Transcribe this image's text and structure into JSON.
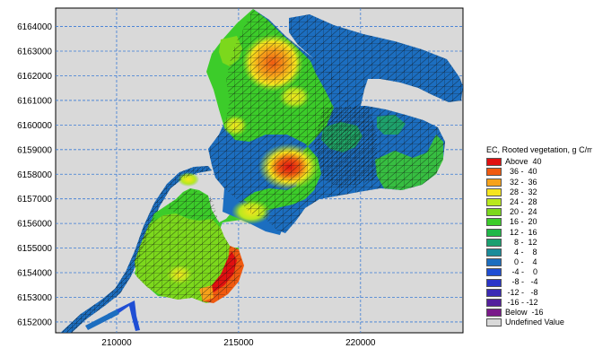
{
  "map": {
    "type": "mesh-contour-map",
    "x_ticks": [
      210000,
      215000,
      220000
    ],
    "y_ticks": [
      6164000,
      6163000,
      6162000,
      6161000,
      6160000,
      6159000,
      6158000,
      6157000,
      6156000,
      6155000,
      6154000,
      6153000,
      6152000
    ],
    "x_range": [
      207500,
      224200
    ],
    "y_range": [
      6151560,
      6164750
    ],
    "grid": true,
    "background_color": "#d9d9d9",
    "mesh_line_color": "#111111"
  },
  "legend": {
    "title": "EC, Rooted vegetation, g C/m",
    "placement": "right",
    "items": [
      {
        "label": "Above  40",
        "color": "#e01010"
      },
      {
        "label": "  36 -  40",
        "color": "#f05a10"
      },
      {
        "label": "  32 -  36",
        "color": "#f7a21a"
      },
      {
        "label": "  28 -  32",
        "color": "#f5e51e"
      },
      {
        "label": "  24 -  28",
        "color": "#b9e81e"
      },
      {
        "label": "  20 -  24",
        "color": "#7cd81c"
      },
      {
        "label": "  16 -  20",
        "color": "#3ccc2a"
      },
      {
        "label": "  12 -  16",
        "color": "#20b848"
      },
      {
        "label": "    8 -  12",
        "color": "#1aa070"
      },
      {
        "label": "    4 -    8",
        "color": "#1a8c9a"
      },
      {
        "label": "    0 -    4",
        "color": "#1c6ec0"
      },
      {
        "label": "   -4 -    0",
        "color": "#1f4ed4"
      },
      {
        "label": "   -8 -   -4",
        "color": "#2a35c8"
      },
      {
        "label": " -12 -   -8",
        "color": "#3a2ab4"
      },
      {
        "label": " -16 - -12",
        "color": "#53209c"
      },
      {
        "label": "Below  -16",
        "color": "#7a1a8a"
      },
      {
        "label": "Undefined Value",
        "color": "#d9d9d9"
      }
    ]
  }
}
